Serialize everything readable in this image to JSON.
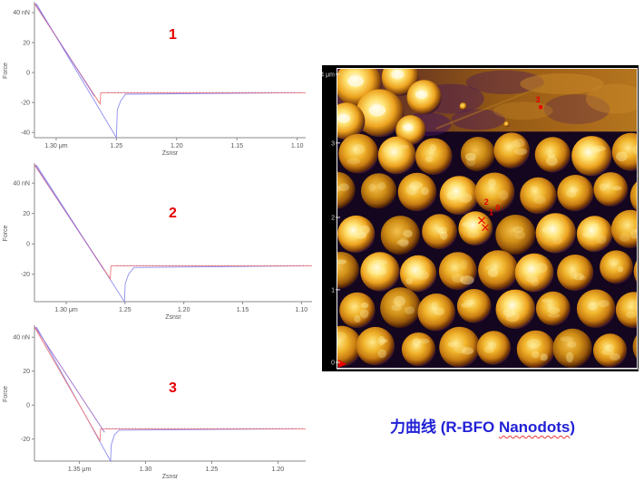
{
  "page": {
    "background": "#ffffff",
    "accent_red": "#e60000"
  },
  "caption": {
    "prefix": "力曲线 (R-BFO ",
    "nanodots": "Nanodots",
    "suffix": ")",
    "color": "#2121d6"
  },
  "chart_data": [
    {
      "id": "force-curve-1",
      "type": "line",
      "label": "1",
      "xlabel": "Zsnsr",
      "ylabel": "Force",
      "xlim": [
        1.318,
        1.093
      ],
      "ylim": [
        46,
        -43.5
      ],
      "x_ticks": [
        {
          "value": 1.3,
          "label": "1.30 μm"
        },
        {
          "value": 1.25,
          "label": "1.25"
        },
        {
          "value": 1.2,
          "label": "1.20"
        },
        {
          "value": 1.15,
          "label": "1.15"
        },
        {
          "value": 1.1,
          "label": "1.10"
        }
      ],
      "y_ticks": [
        {
          "value": 40,
          "label": "40 nN"
        },
        {
          "value": 20,
          "label": "20"
        },
        {
          "value": 0,
          "label": "0"
        },
        {
          "value": -20,
          "label": "-20"
        },
        {
          "value": -40,
          "label": "-40"
        }
      ],
      "series": [
        {
          "name": "retract",
          "color": "#8e8ef0",
          "points": [
            [
              1.3165,
              46
            ],
            [
              1.25,
              -43.5
            ],
            [
              1.2493,
              -25
            ],
            [
              1.2465,
              -19
            ],
            [
              1.2425,
              -14.5
            ],
            [
              1.102,
              -13.5
            ]
          ]
        },
        {
          "name": "extend",
          "color": "#f07878",
          "points": [
            [
              1.318,
              46
            ],
            [
              1.2635,
              -21
            ],
            [
              1.263,
              -13.5
            ],
            [
              1.093,
              -13.5
            ]
          ]
        }
      ],
      "overlap_segment": {
        "color": "#a06cc8",
        "points": [
          [
            1.3175,
            46
          ],
          [
            1.268,
            -16
          ]
        ]
      },
      "noise": {
        "from": 1.257,
        "to": 1.096,
        "value": -13.5
      }
    },
    {
      "id": "force-curve-2",
      "type": "line",
      "label": "2",
      "xlabel": "Zsnsr",
      "ylabel": "Force",
      "xlim": [
        1.327,
        1.091
      ],
      "ylim": [
        52,
        -38
      ],
      "x_ticks": [
        {
          "value": 1.3,
          "label": "1.30 μm"
        },
        {
          "value": 1.25,
          "label": "1.25"
        },
        {
          "value": 1.2,
          "label": "1.20"
        },
        {
          "value": 1.15,
          "label": "1.15"
        },
        {
          "value": 1.1,
          "label": "1.10"
        }
      ],
      "y_ticks": [
        {
          "value": 40,
          "label": "40 nN"
        },
        {
          "value": 20,
          "label": "20"
        },
        {
          "value": 0,
          "label": "0"
        },
        {
          "value": -20,
          "label": "-20"
        }
      ],
      "series": [
        {
          "name": "retract",
          "color": "#8e8ef0",
          "points": [
            [
              1.3255,
              52
            ],
            [
              1.2505,
              -38
            ],
            [
              1.2498,
              -26
            ],
            [
              1.247,
              -20
            ],
            [
              1.2425,
              -15.5
            ],
            [
              1.1,
              -14.5
            ]
          ]
        },
        {
          "name": "extend",
          "color": "#f07878",
          "points": [
            [
              1.327,
              52
            ],
            [
              1.2625,
              -23
            ],
            [
              1.262,
              -14.5
            ],
            [
              1.091,
              -14.5
            ]
          ]
        }
      ],
      "overlap_segment": {
        "color": "#a06cc8",
        "points": [
          [
            1.3265,
            52
          ],
          [
            1.268,
            -17
          ]
        ]
      },
      "noise": {
        "from": 1.257,
        "to": 1.093,
        "value": -14.5
      }
    },
    {
      "id": "force-curve-3",
      "type": "line",
      "label": "3",
      "xlabel": "Zsnsr",
      "ylabel": "Force",
      "xlim": [
        1.384,
        1.179
      ],
      "ylim": [
        46,
        -33
      ],
      "x_ticks": [
        {
          "value": 1.35,
          "label": "1.35 μm"
        },
        {
          "value": 1.3,
          "label": "1.30"
        },
        {
          "value": 1.25,
          "label": "1.25"
        },
        {
          "value": 1.2,
          "label": "1.20"
        }
      ],
      "y_ticks": [
        {
          "value": 40,
          "label": "40 nN"
        },
        {
          "value": 20,
          "label": "20"
        },
        {
          "value": 0,
          "label": "0"
        },
        {
          "value": -20,
          "label": "-20"
        }
      ],
      "series": [
        {
          "name": "retract",
          "color": "#8e8ef0",
          "points": [
            [
              1.3825,
              46
            ],
            [
              1.3265,
              -33
            ],
            [
              1.326,
              -23.5
            ],
            [
              1.3235,
              -17.5
            ],
            [
              1.32,
              -14.8
            ],
            [
              1.187,
              -14
            ]
          ]
        },
        {
          "name": "extend",
          "color": "#f07878",
          "points": [
            [
              1.384,
              46
            ],
            [
              1.3345,
              -21
            ],
            [
              1.334,
              -14
            ],
            [
              1.179,
              -14
            ]
          ]
        }
      ],
      "overlap_segment": {
        "color": "#a06cc8",
        "points": [
          [
            1.3835,
            46
          ],
          [
            1.331,
            -16
          ]
        ]
      },
      "noise": {
        "from": 1.33,
        "to": 1.181,
        "value": -14
      }
    }
  ],
  "afm": {
    "type": "afm-height-image",
    "description": "AFM topography of R-BFO nanodot array, 4 μm scan",
    "axis_unit_labels": [
      {
        "label": "4 μm",
        "pos": 0.018
      },
      {
        "label": "3",
        "pos": 0.248
      },
      {
        "label": "2",
        "pos": 0.497
      },
      {
        "label": "1",
        "pos": 0.739
      },
      {
        "label": "0",
        "pos": 0.982
      }
    ],
    "markers": {
      "color": "#e80000",
      "labels": [
        {
          "text": "3",
          "x": 0.662,
          "y": 0.112
        },
        {
          "text": "2",
          "x": 0.49,
          "y": 0.455
        },
        {
          "text": "1",
          "x": 0.506,
          "y": 0.49
        },
        {
          "text": "0",
          "x": 0.528,
          "y": 0.474
        }
      ],
      "point_squares": [
        {
          "x": 0.679,
          "y": 0.128
        }
      ],
      "crosses": [
        {
          "x": 0.482,
          "y": 0.507
        },
        {
          "x": 0.494,
          "y": 0.531
        }
      ],
      "origin_arrow": {
        "x": 0.0,
        "y": 1.0
      }
    },
    "palette": {
      "background": "#14061e",
      "gap": "#3c1650",
      "dot_bright": "#ffe373",
      "dot_mid": "#f0b32a",
      "dot_rim": "#6e3407",
      "film": "#955a14",
      "film_shadow": "#46175a",
      "border": "#f0f0f0"
    }
  }
}
